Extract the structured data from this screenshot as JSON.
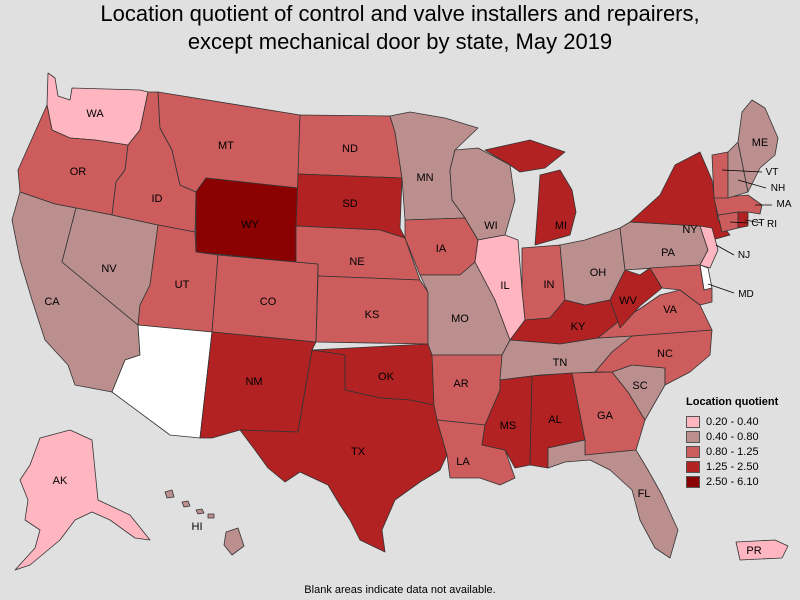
{
  "title": {
    "line1": "Location quotient of control and valve installers and repairers,",
    "line2": "except mechanical door by state, May 2019"
  },
  "legend": {
    "title": "Location quotient",
    "items": [
      {
        "label": "0.20 - 0.40",
        "color": "#ffb6c1"
      },
      {
        "label": "0.40 - 0.80",
        "color": "#bc8f8f"
      },
      {
        "label": "0.80 - 1.25",
        "color": "#cd5c5c"
      },
      {
        "label": "1.25 - 2.50",
        "color": "#b22222"
      },
      {
        "label": "2.50 - 6.10",
        "color": "#8b0000"
      }
    ]
  },
  "footnote": "Blank areas indicate data not available.",
  "colors": {
    "background": "#e0e0e0",
    "no_data": "#ffffff",
    "border": "#333333"
  },
  "states": {
    "WA": {
      "label": "WA",
      "class": "0.20 - 0.40"
    },
    "OR": {
      "label": "OR",
      "class": "0.80 - 1.25"
    },
    "CA": {
      "label": "CA",
      "class": "0.40 - 0.80"
    },
    "NV": {
      "label": "NV",
      "class": "0.40 - 0.80"
    },
    "ID": {
      "label": "ID",
      "class": "0.80 - 1.25"
    },
    "MT": {
      "label": "MT",
      "class": "0.80 - 1.25"
    },
    "WY": {
      "label": "WY",
      "class": "2.50 - 6.10"
    },
    "UT": {
      "label": "UT",
      "class": "0.80 - 1.25"
    },
    "AZ": {
      "label": "",
      "class": "no data"
    },
    "CO": {
      "label": "CO",
      "class": "0.80 - 1.25"
    },
    "NM": {
      "label": "NM",
      "class": "1.25 - 2.50"
    },
    "ND": {
      "label": "ND",
      "class": "0.80 - 1.25"
    },
    "SD": {
      "label": "SD",
      "class": "1.25 - 2.50"
    },
    "NE": {
      "label": "NE",
      "class": "0.80 - 1.25"
    },
    "KS": {
      "label": "KS",
      "class": "0.80 - 1.25"
    },
    "OK": {
      "label": "OK",
      "class": "1.25 - 2.50"
    },
    "TX": {
      "label": "TX",
      "class": "1.25 - 2.50"
    },
    "MN": {
      "label": "MN",
      "class": "0.40 - 0.80"
    },
    "IA": {
      "label": "IA",
      "class": "0.80 - 1.25"
    },
    "MO": {
      "label": "MO",
      "class": "0.40 - 0.80"
    },
    "AR": {
      "label": "AR",
      "class": "0.80 - 1.25"
    },
    "LA": {
      "label": "LA",
      "class": "0.80 - 1.25"
    },
    "WI": {
      "label": "WI",
      "class": "0.40 - 0.80"
    },
    "IL": {
      "label": "IL",
      "class": "0.20 - 0.40"
    },
    "MI": {
      "label": "MI",
      "class": "1.25 - 2.50"
    },
    "IN": {
      "label": "IN",
      "class": "0.80 - 1.25"
    },
    "OH": {
      "label": "OH",
      "class": "0.40 - 0.80"
    },
    "KY": {
      "label": "KY",
      "class": "1.25 - 2.50"
    },
    "TN": {
      "label": "TN",
      "class": "0.40 - 0.80"
    },
    "MS": {
      "label": "MS",
      "class": "1.25 - 2.50"
    },
    "AL": {
      "label": "AL",
      "class": "1.25 - 2.50"
    },
    "GA": {
      "label": "GA",
      "class": "0.80 - 1.25"
    },
    "FL": {
      "label": "FL",
      "class": "0.40 - 0.80"
    },
    "SC": {
      "label": "SC",
      "class": "0.40 - 0.80"
    },
    "NC": {
      "label": "NC",
      "class": "0.80 - 1.25"
    },
    "VA": {
      "label": "VA",
      "class": "0.80 - 1.25"
    },
    "WV": {
      "label": "WV",
      "class": "1.25 - 2.50"
    },
    "PA": {
      "label": "PA",
      "class": "0.40 - 0.80"
    },
    "NY": {
      "label": "NY",
      "class": "1.25 - 2.50"
    },
    "NJ": {
      "label": "NJ",
      "class": "0.20 - 0.40"
    },
    "DE": {
      "label": "",
      "class": "no data"
    },
    "MD": {
      "label": "MD",
      "class": "0.80 - 1.25"
    },
    "CT": {
      "label": "CT",
      "class": "0.80 - 1.25"
    },
    "RI": {
      "label": "RI",
      "class": "1.25 - 2.50"
    },
    "MA": {
      "label": "MA",
      "class": "0.80 - 1.25"
    },
    "VT": {
      "label": "VT",
      "class": "0.80 - 1.25"
    },
    "NH": {
      "label": "NH",
      "class": "0.40 - 0.80"
    },
    "ME": {
      "label": "ME",
      "class": "0.40 - 0.80"
    },
    "AK": {
      "label": "AK",
      "class": "0.20 - 0.40"
    },
    "HI": {
      "label": "HI",
      "class": "0.40 - 0.80"
    },
    "PR": {
      "label": "PR",
      "class": "0.20 - 0.40"
    }
  }
}
